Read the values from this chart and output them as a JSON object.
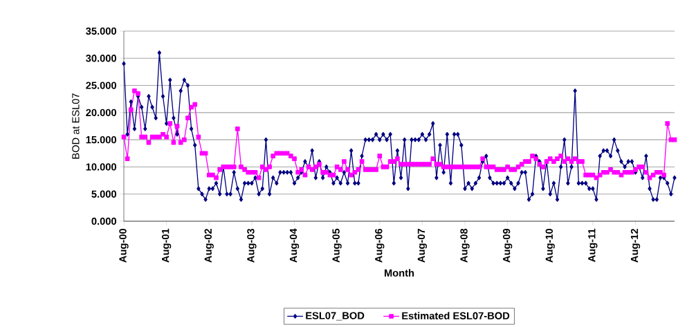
{
  "chart_data": {
    "type": "line",
    "xlabel": "Month",
    "ylabel": "BOD at ESL07",
    "categories": [
      "Aug-00",
      null,
      null,
      null,
      null,
      null,
      null,
      null,
      null,
      null,
      null,
      null,
      "Aug-01",
      null,
      null,
      null,
      null,
      null,
      null,
      null,
      null,
      null,
      null,
      null,
      "Aug-02",
      null,
      null,
      null,
      null,
      null,
      null,
      null,
      null,
      null,
      null,
      null,
      "Aug-03",
      null,
      null,
      null,
      null,
      null,
      null,
      null,
      null,
      null,
      null,
      null,
      "Aug-04",
      null,
      null,
      null,
      null,
      null,
      null,
      null,
      null,
      null,
      null,
      null,
      "Aug-05",
      null,
      null,
      null,
      null,
      null,
      null,
      null,
      null,
      null,
      null,
      null,
      "Aug-06",
      null,
      null,
      null,
      null,
      null,
      null,
      null,
      null,
      null,
      null,
      null,
      "Aug-07",
      null,
      null,
      null,
      null,
      null,
      null,
      null,
      null,
      null,
      null,
      null,
      "Aug-08",
      null,
      null,
      null,
      null,
      null,
      null,
      null,
      null,
      null,
      null,
      null,
      "Aug-09",
      null,
      null,
      null,
      null,
      null,
      null,
      null,
      null,
      null,
      null,
      null,
      "Aug-10",
      null,
      null,
      null,
      null,
      null,
      null,
      null,
      null,
      null,
      null,
      null,
      "Aug-11",
      null,
      null,
      null,
      null,
      null,
      null,
      null,
      null,
      null,
      null,
      null,
      "Aug-12",
      null,
      null,
      null,
      null,
      null,
      null,
      null,
      null,
      null,
      null,
      null
    ],
    "series": [
      {
        "name": "ESL07_BOD",
        "color": "#000080",
        "marker": "diamond",
        "values": [
          29,
          16,
          22,
          17,
          23,
          21,
          17,
          23,
          21,
          19,
          31,
          23,
          18,
          26,
          19,
          16,
          24,
          26,
          25,
          17,
          14,
          6,
          5,
          4,
          6,
          6,
          7,
          5,
          10,
          5,
          5,
          9,
          6,
          4,
          7,
          7,
          7,
          8,
          5,
          6,
          15,
          5,
          8,
          7,
          9,
          9,
          9,
          9,
          7,
          8,
          9,
          11,
          10,
          13,
          8,
          11,
          8,
          10,
          9,
          7,
          8,
          7,
          9,
          7,
          13,
          7,
          7,
          12,
          15,
          15,
          15,
          16,
          15,
          16,
          15,
          16,
          7,
          13,
          8,
          15,
          6,
          15,
          15,
          15,
          16,
          15,
          16,
          18,
          8,
          14,
          9,
          16,
          7,
          16,
          16,
          14,
          6,
          7,
          6,
          7,
          8,
          11,
          12,
          8,
          7,
          7,
          7,
          7,
          8,
          7,
          6,
          7,
          9,
          9,
          4,
          5,
          12,
          11,
          6,
          11,
          5,
          7,
          4,
          10,
          15,
          7,
          10,
          24,
          7,
          7,
          7,
          6,
          6,
          4,
          12,
          13,
          13,
          12,
          15,
          13,
          11,
          10,
          11,
          11,
          9,
          10,
          8,
          12,
          6,
          4,
          4,
          8,
          8,
          7,
          5,
          8
        ]
      },
      {
        "name": "Estimated ESL07-BOD",
        "color": "#ff00ff",
        "marker": "square",
        "values": [
          15.5,
          11.5,
          20.5,
          24,
          23.5,
          15.5,
          15.5,
          14.5,
          15.5,
          15.5,
          15.5,
          16,
          15.5,
          18,
          14.5,
          17.5,
          14.5,
          15,
          19,
          21,
          21.5,
          15.5,
          12.5,
          12.5,
          8.5,
          8.5,
          8,
          9.5,
          10,
          10,
          10,
          10,
          17,
          10,
          9.5,
          9,
          9,
          9,
          8,
          10,
          9.5,
          10,
          12,
          12.5,
          12.5,
          12.5,
          12.5,
          12,
          11.5,
          9,
          9.5,
          8.5,
          10,
          9.5,
          10,
          10.5,
          9,
          9,
          8.5,
          8.5,
          10,
          9.5,
          11,
          9.5,
          8.5,
          9,
          9.5,
          11,
          9.5,
          9.5,
          9.5,
          9.5,
          12,
          10,
          10,
          11,
          11,
          11.5,
          10.5,
          10.5,
          10.5,
          10.5,
          10.5,
          10.5,
          10.5,
          10.5,
          10.5,
          11.5,
          10.5,
          10.5,
          10,
          10,
          10,
          10,
          10,
          10,
          10,
          10,
          10,
          10,
          10,
          11.5,
          10,
          10,
          10,
          9.5,
          9.5,
          9.5,
          10,
          9.5,
          9.5,
          10,
          10.5,
          11,
          11,
          12,
          11.5,
          10.5,
          10,
          11,
          11.5,
          11,
          11.5,
          12,
          11,
          11.5,
          11,
          11.5,
          11,
          11,
          8.5,
          8.5,
          8.5,
          8,
          8.5,
          9,
          9,
          9.5,
          9,
          9,
          8.5,
          9,
          9,
          9,
          9.5,
          10,
          10,
          9,
          8,
          8.5,
          9,
          9,
          8.5,
          18,
          15,
          15
        ]
      }
    ],
    "ylim": [
      0,
      35
    ],
    "yticks": [
      {
        "value": 0,
        "label": "0.000"
      },
      {
        "value": 5,
        "label": "5.000"
      },
      {
        "value": 10,
        "label": "10.000"
      },
      {
        "value": 15,
        "label": "15.000"
      },
      {
        "value": 20,
        "label": "20.000"
      },
      {
        "value": 25,
        "label": "25.000"
      },
      {
        "value": 30,
        "label": "30.000"
      },
      {
        "value": 35,
        "label": "35.000"
      }
    ],
    "grid": "y",
    "legend": "bottom",
    "line_style": "solid"
  }
}
